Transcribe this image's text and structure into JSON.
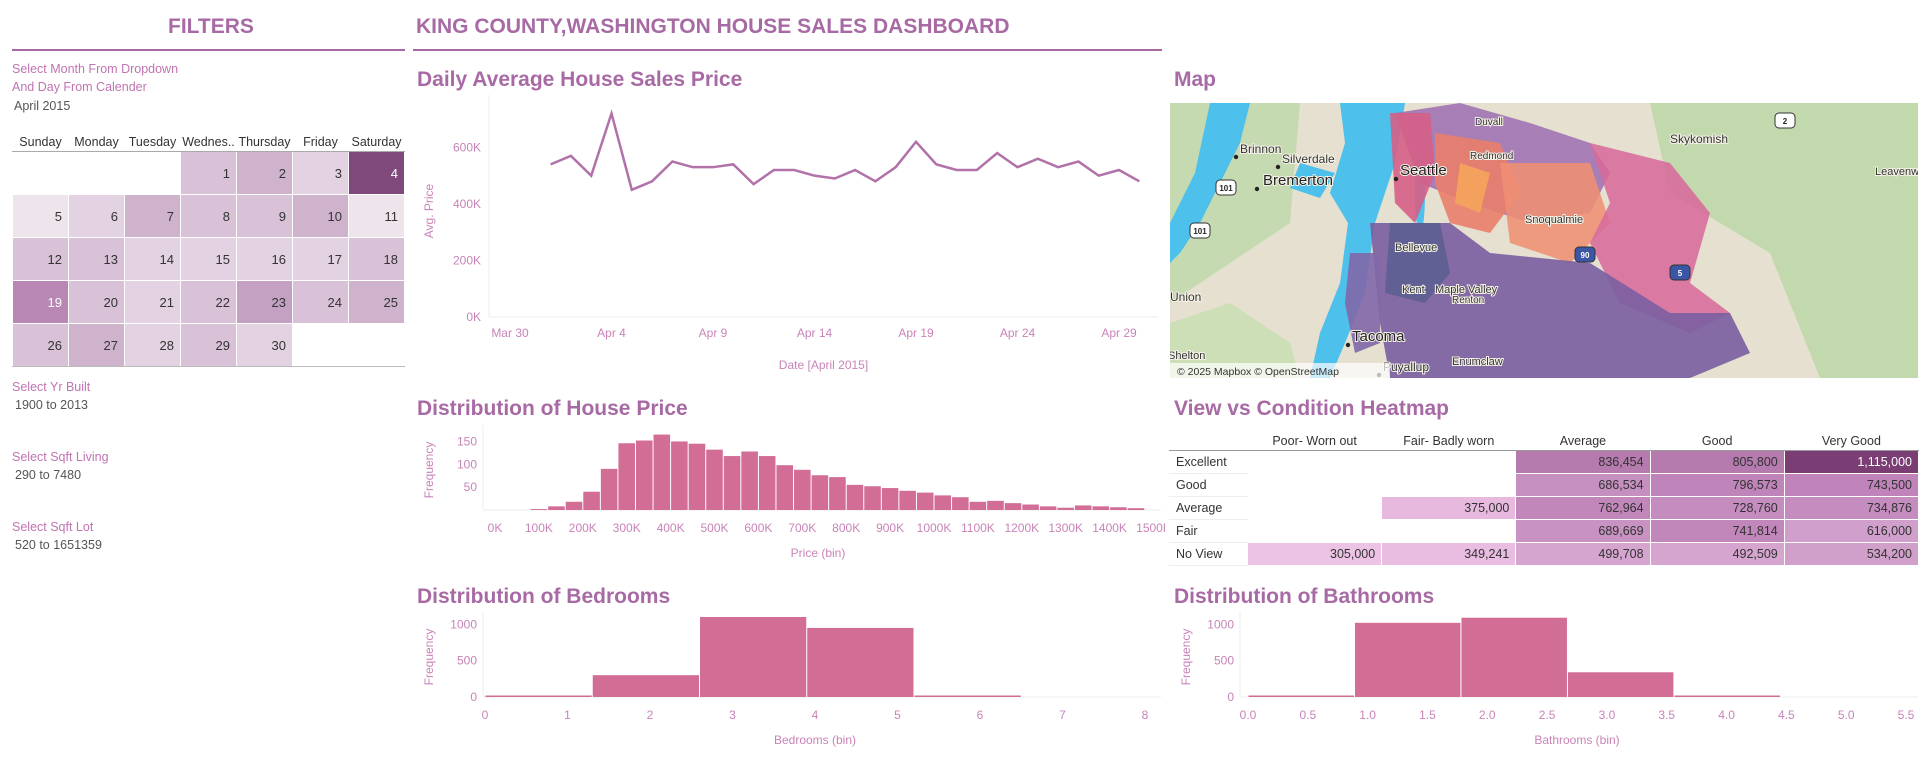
{
  "filters": {
    "title": "FILTERS",
    "month_label_line1": "Select Month From Dropdown",
    "month_label_line2": "And Day From Calender",
    "month_value": "April 2015",
    "yr_built_label": "Select Yr Built",
    "yr_built_value": "1900 to 2013",
    "sqft_living_label": "Select Sqft Living",
    "sqft_living_value": "290 to 7480",
    "sqft_lot_label": "Select Sqft Lot",
    "sqft_lot_value": "520 to 1651359"
  },
  "calendar": {
    "headers": [
      "Sunday",
      "Monday",
      "Tuesday",
      "Wednes..",
      "Thursday",
      "Friday",
      "Saturday"
    ],
    "weeks": [
      [
        null,
        null,
        null,
        1,
        2,
        3,
        4
      ],
      [
        5,
        6,
        7,
        8,
        9,
        10,
        11
      ],
      [
        12,
        13,
        14,
        15,
        16,
        17,
        18
      ],
      [
        19,
        20,
        21,
        22,
        23,
        24,
        25
      ],
      [
        26,
        27,
        28,
        29,
        30,
        null,
        null
      ]
    ],
    "shade": [
      [
        null,
        null,
        null,
        3,
        4,
        2,
        9
      ],
      [
        1,
        2,
        4,
        3,
        3,
        4,
        1
      ],
      [
        3,
        3,
        2,
        2,
        2,
        2,
        3
      ],
      [
        6,
        3,
        2,
        3,
        5,
        3,
        4
      ],
      [
        3,
        4,
        2,
        3,
        2,
        null,
        null
      ]
    ],
    "colors": [
      "#f3eff3",
      "#ede4ec",
      "#e3d3e2",
      "#d9c2d7",
      "#cfb3cd",
      "#c4a1c2",
      "#b887b4",
      "#a970a4",
      "#985c93",
      "#7f4a7b"
    ]
  },
  "dashboard_title": "KING COUNTY,WASHINGTON HOUSE SALES DASHBOARD",
  "line_chart": {
    "title": "Daily Average House Sales Price",
    "ylabel": "Avg. Price",
    "xlabel": "Date [April 2015]",
    "y_ticks": [
      "0K",
      "200K",
      "400K",
      "600K"
    ],
    "x_ticks": [
      "Mar 30",
      "Apr 4",
      "Apr 9",
      "Apr 14",
      "Apr 19",
      "Apr 24",
      "Apr 29"
    ],
    "color": "#b171a9"
  },
  "map": {
    "title": "Map",
    "attribution": "© 2025 Mapbox © OpenStreetMap",
    "places": [
      "Brinnon",
      "Silverdale",
      "Bremerton",
      "Seattle",
      "Skykomish",
      "Leavenworth",
      "Union",
      "Tacoma",
      "Puyallup",
      "Enumclaw",
      "Shelton",
      "Duvall",
      "Redmond",
      "Bellevue",
      "Renton",
      "Kent",
      "Maple Valley",
      "Snoqualmie"
    ],
    "highways": [
      "101",
      "101",
      "2",
      "90",
      "5"
    ]
  },
  "histogram": {
    "title": "Distribution of House Price",
    "ylabel": "Frequency",
    "xlabel": "Price (bin)",
    "y_ticks": [
      "50",
      "100",
      "150"
    ],
    "x_ticks": [
      "0K",
      "100K",
      "200K",
      "300K",
      "400K",
      "500K",
      "600K",
      "700K",
      "800K",
      "900K",
      "1000K",
      "1100K",
      "1200K",
      "1300K",
      "1400K",
      "1500K"
    ],
    "color": "#d26d96"
  },
  "bedrooms": {
    "title": "Distribution of Bedrooms",
    "ylabel": "Frequency",
    "xlabel": "Bedrooms (bin)",
    "y_ticks": [
      "0",
      "500",
      "1000"
    ],
    "x_ticks": [
      "0",
      "1",
      "2",
      "3",
      "4",
      "5",
      "6",
      "7",
      "8"
    ]
  },
  "bathrooms": {
    "title": "Distribution of Bathrooms",
    "ylabel": "Frequency",
    "xlabel": "Bathrooms (bin)",
    "y_ticks": [
      "0",
      "500",
      "1000"
    ],
    "x_ticks": [
      "0.0",
      "0.5",
      "1.0",
      "1.5",
      "2.0",
      "2.5",
      "3.0",
      "3.5",
      "4.0",
      "4.5",
      "5.0",
      "5.5"
    ]
  },
  "heatmap": {
    "title": "View vs Condition Heatmap",
    "columns": [
      "Poor- Worn out",
      "Fair- Badly worn",
      "Average",
      "Good",
      "Very Good"
    ],
    "rows": [
      {
        "label": "Excellent",
        "cells": [
          "",
          "",
          "836,454",
          "805,800",
          "1,115,000"
        ],
        "colors": [
          "",
          "",
          "#b57aae",
          "#b57aae",
          "#7a3d74"
        ]
      },
      {
        "label": "Good",
        "cells": [
          "",
          "",
          "686,534",
          "796,573",
          "743,500"
        ],
        "colors": [
          "",
          "",
          "#c58fbf",
          "#bf84b9",
          "#c084ba"
        ]
      },
      {
        "label": "Average",
        "cells": [
          "",
          "375,000",
          "762,964",
          "728,760",
          "734,876"
        ],
        "colors": [
          "",
          "#e7b9df",
          "#c187bb",
          "#c58dbf",
          "#c58dbf"
        ]
      },
      {
        "label": "Fair",
        "cells": [
          "",
          "",
          "689,669",
          "741,814",
          "616,000"
        ],
        "colors": [
          "",
          "",
          "#c892c2",
          "#c187bb",
          "#d19fcb"
        ]
      },
      {
        "label": "No View",
        "cells": [
          "305,000",
          "349,241",
          "499,708",
          "492,509",
          "534,200"
        ],
        "colors": [
          "#ecc3e5",
          "#e9bde2",
          "#d5a5cf",
          "#d5a5cf",
          "#d0a0ca"
        ]
      }
    ]
  },
  "chart_data": [
    {
      "type": "line",
      "title": "Daily Average House Sales Price",
      "xlabel": "Date [April 2015]",
      "ylabel": "Avg. Price",
      "x": [
        "Apr 1",
        "Apr 2",
        "Apr 3",
        "Apr 4",
        "Apr 5",
        "Apr 6",
        "Apr 7",
        "Apr 8",
        "Apr 9",
        "Apr 10",
        "Apr 11",
        "Apr 12",
        "Apr 13",
        "Apr 14",
        "Apr 15",
        "Apr 16",
        "Apr 17",
        "Apr 18",
        "Apr 19",
        "Apr 20",
        "Apr 21",
        "Apr 22",
        "Apr 23",
        "Apr 24",
        "Apr 25",
        "Apr 26",
        "Apr 27",
        "Apr 28",
        "Apr 29",
        "Apr 30"
      ],
      "values": [
        540000,
        570000,
        500000,
        720000,
        450000,
        480000,
        550000,
        530000,
        530000,
        540000,
        470000,
        520000,
        520000,
        500000,
        490000,
        520000,
        480000,
        530000,
        620000,
        540000,
        520000,
        520000,
        580000,
        530000,
        560000,
        530000,
        550000,
        500000,
        520000,
        480000
      ],
      "ylim": [
        0,
        750000
      ]
    },
    {
      "type": "bar",
      "title": "Distribution of House Price",
      "xlabel": "Price (bin)",
      "ylabel": "Frequency",
      "bin_width": 40000,
      "bin_starts": [
        80000,
        120000,
        160000,
        200000,
        240000,
        280000,
        320000,
        360000,
        400000,
        440000,
        480000,
        520000,
        560000,
        600000,
        640000,
        680000,
        720000,
        760000,
        800000,
        840000,
        880000,
        920000,
        960000,
        1000000,
        1040000,
        1080000,
        1120000,
        1160000,
        1200000,
        1240000,
        1280000,
        1320000,
        1360000,
        1400000,
        1440000
      ],
      "values": [
        2,
        8,
        18,
        40,
        90,
        146,
        152,
        165,
        150,
        145,
        132,
        118,
        128,
        118,
        98,
        88,
        76,
        72,
        55,
        52,
        48,
        42,
        38,
        32,
        28,
        18,
        20,
        15,
        12,
        8,
        5,
        10,
        8,
        6,
        4
      ],
      "ylim": [
        0,
        175
      ]
    },
    {
      "type": "bar",
      "title": "Distribution of Bedrooms",
      "xlabel": "Bedrooms (bin)",
      "ylabel": "Frequency",
      "bins": [
        [
          0,
          1.3
        ],
        [
          1.3,
          2.6
        ],
        [
          2.6,
          3.9
        ],
        [
          3.9,
          5.2
        ],
        [
          5.2,
          6.5
        ]
      ],
      "values": [
        20,
        300,
        1100,
        950,
        10
      ],
      "ylim": [
        0,
        1100
      ]
    },
    {
      "type": "bar",
      "title": "Distribution of Bathrooms",
      "xlabel": "Bathrooms (bin)",
      "ylabel": "Frequency",
      "bins": [
        [
          0,
          0.89
        ],
        [
          0.89,
          1.78
        ],
        [
          1.78,
          2.67
        ],
        [
          2.67,
          3.56
        ],
        [
          3.56,
          4.45
        ]
      ],
      "values": [
        8,
        1020,
        1090,
        340,
        12
      ],
      "ylim": [
        0,
        1100
      ]
    }
  ]
}
